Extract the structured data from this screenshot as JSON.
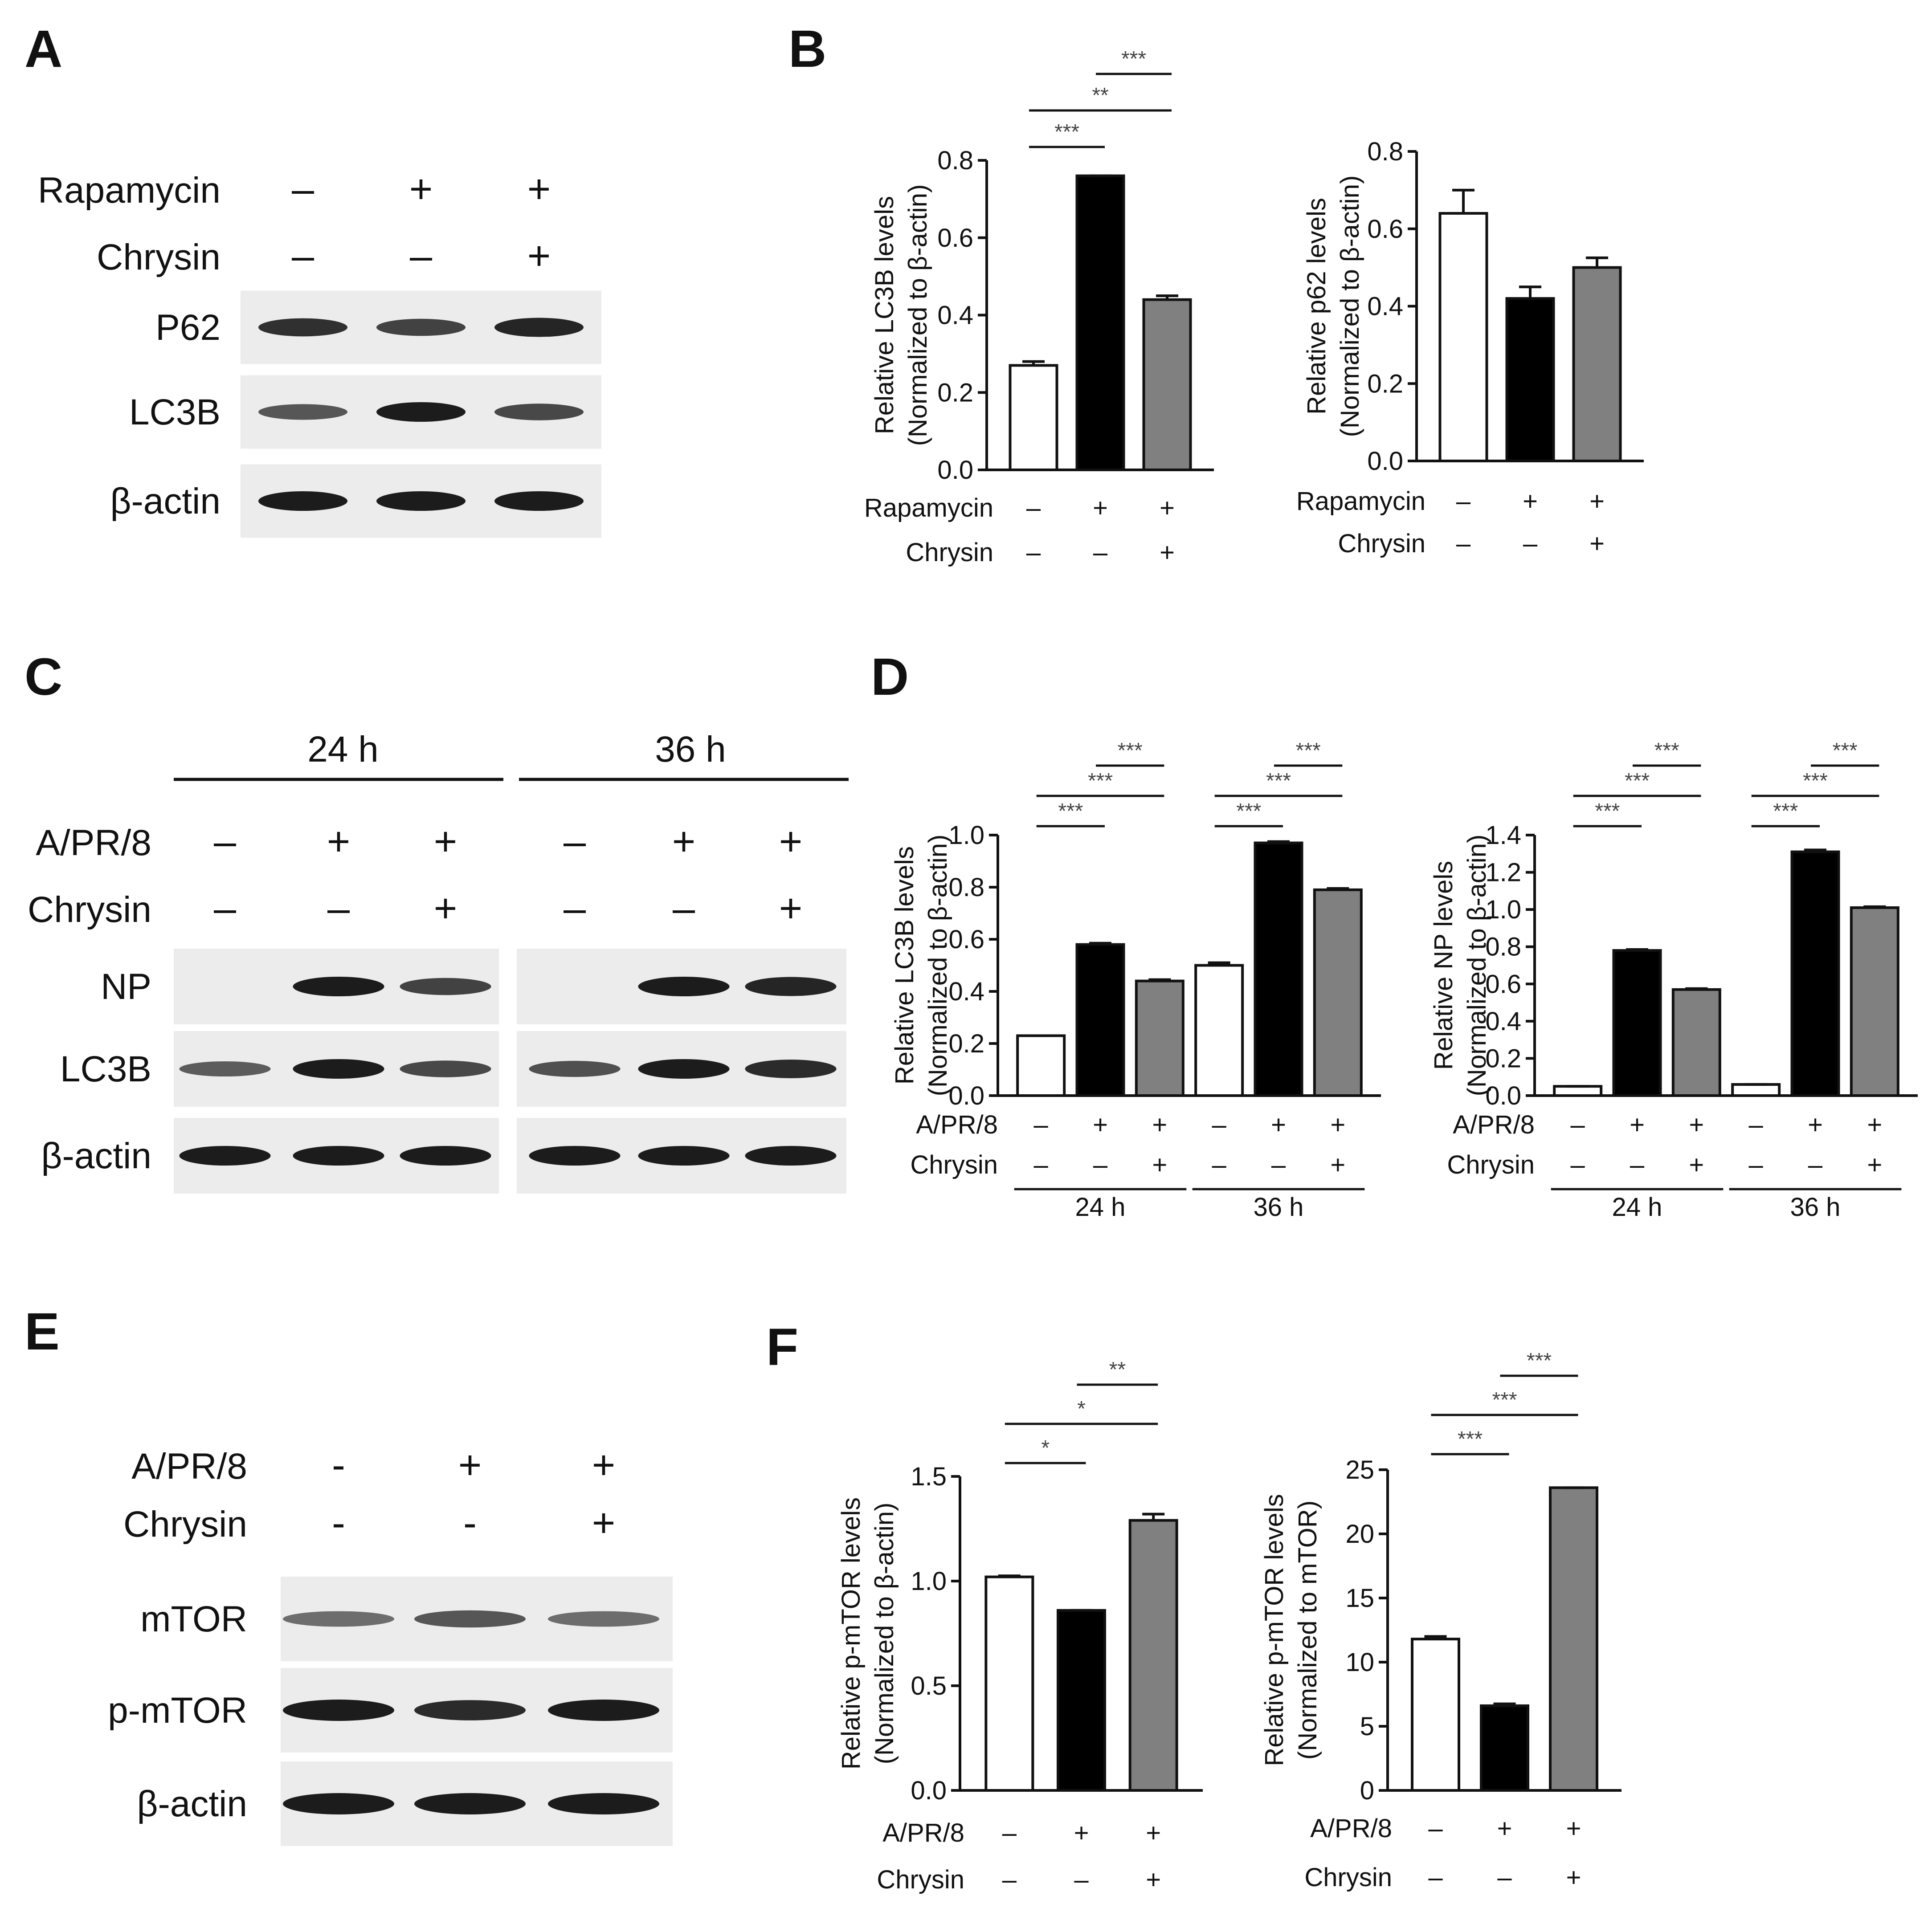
{
  "panels": {
    "A": "A",
    "B": "B",
    "C": "C",
    "D": "D",
    "E": "E",
    "F": "F"
  },
  "colors": {
    "control": "#ffffff",
    "treated": "#000000",
    "combo": "#808080",
    "band": "#1c1c1c",
    "blot_bg": "#ececec"
  },
  "blot_A": {
    "conditions": [
      {
        "label": "Rapamycin",
        "signs": [
          "–",
          "+",
          "+"
        ]
      },
      {
        "label": "Chrysin",
        "signs": [
          "–",
          "–",
          "+"
        ]
      }
    ],
    "rows": [
      {
        "label": "P62",
        "band_intensity": [
          0.85,
          0.75,
          0.95
        ]
      },
      {
        "label": "LC3B",
        "band_intensity": [
          0.6,
          1.0,
          0.7
        ]
      },
      {
        "label": "β-actin",
        "band_intensity": [
          1.0,
          1.0,
          1.0
        ]
      }
    ]
  },
  "blot_C": {
    "groups": [
      "24 h",
      "36 h"
    ],
    "conditions": [
      {
        "label": "A/PR/8",
        "signs": [
          "–",
          "+",
          "+",
          "–",
          "+",
          "+"
        ]
      },
      {
        "label": "Chrysin",
        "signs": [
          "–",
          "–",
          "+",
          "–",
          "–",
          "+"
        ]
      }
    ],
    "rows": [
      {
        "label": "NP",
        "band_intensity": [
          0,
          1.0,
          0.75,
          0,
          1.0,
          0.95
        ]
      },
      {
        "label": "LC3B",
        "band_intensity": [
          0.55,
          1.0,
          0.7,
          0.65,
          1.0,
          0.9
        ]
      },
      {
        "label": "β-actin",
        "band_intensity": [
          1.0,
          1.0,
          1.0,
          1.0,
          1.0,
          1.0
        ]
      }
    ]
  },
  "blot_E": {
    "conditions": [
      {
        "label": "A/PR/8",
        "signs": [
          "-",
          "+",
          "+"
        ]
      },
      {
        "label": "Chrysin",
        "signs": [
          "-",
          "-",
          "+"
        ]
      }
    ],
    "rows": [
      {
        "label": "mTOR",
        "band_intensity": [
          0.45,
          0.6,
          0.45
        ]
      },
      {
        "label": "p-mTOR",
        "band_intensity": [
          1.0,
          0.9,
          1.0
        ]
      },
      {
        "label": "β-actin",
        "band_intensity": [
          1.0,
          1.0,
          1.0
        ]
      }
    ]
  },
  "chart_data": [
    {
      "panel": "B",
      "type": "bar",
      "ylabel": [
        "Relative LC3B levels",
        "(Normalized to β-actin)"
      ],
      "ylim": [
        0,
        0.8
      ],
      "yticks": [
        "0.0",
        "0.2",
        "0.4",
        "0.6",
        "0.8"
      ],
      "values": [
        0.27,
        0.76,
        0.44
      ],
      "errors": [
        0.01,
        0.0,
        0.01
      ],
      "conditions": [
        {
          "label": "Rapamycin",
          "signs": [
            "–",
            "+",
            "+"
          ]
        },
        {
          "label": "Chrysin",
          "signs": [
            "–",
            "–",
            "+"
          ]
        }
      ],
      "significance": [
        {
          "from": 0,
          "to": 1,
          "label": "***"
        },
        {
          "from": 0,
          "to": 2,
          "label": "**"
        },
        {
          "from": 1,
          "to": 2,
          "label": "***"
        }
      ]
    },
    {
      "panel": "B",
      "type": "bar",
      "ylabel": [
        "Relative p62 levels",
        "(Normalized to β-actin)"
      ],
      "ylim": [
        0,
        0.8
      ],
      "yticks": [
        "0.0",
        "0.2",
        "0.4",
        "0.6",
        "0.8"
      ],
      "values": [
        0.64,
        0.42,
        0.5
      ],
      "errors": [
        0.06,
        0.03,
        0.025
      ],
      "conditions": [
        {
          "label": "Rapamycin",
          "signs": [
            "–",
            "+",
            "+"
          ]
        },
        {
          "label": "Chrysin",
          "signs": [
            "–",
            "–",
            "+"
          ]
        }
      ],
      "significance": []
    },
    {
      "panel": "D",
      "type": "bar",
      "ylabel": [
        "Relative LC3B levels",
        "(Normalized to β-actin)"
      ],
      "ylim": [
        0,
        1.0
      ],
      "yticks": [
        "0.0",
        "0.2",
        "0.4",
        "0.6",
        "0.8",
        "1.0"
      ],
      "groups": [
        "24 h",
        "36 h"
      ],
      "values": [
        0.23,
        0.58,
        0.44,
        0.5,
        0.97,
        0.79
      ],
      "errors": [
        0.0,
        0.005,
        0.005,
        0.01,
        0.005,
        0.005
      ],
      "conditions": [
        {
          "label": "A/PR/8",
          "signs": [
            "–",
            "+",
            "+",
            "–",
            "+",
            "+"
          ]
        },
        {
          "label": "Chrysin",
          "signs": [
            "–",
            "–",
            "+",
            "–",
            "–",
            "+"
          ]
        }
      ],
      "significance": [
        {
          "from": 0,
          "to": 1,
          "label": "***"
        },
        {
          "from": 0,
          "to": 2,
          "label": "***"
        },
        {
          "from": 1,
          "to": 2,
          "label": "***"
        },
        {
          "from": 3,
          "to": 4,
          "label": "***"
        },
        {
          "from": 3,
          "to": 5,
          "label": "***"
        },
        {
          "from": 4,
          "to": 5,
          "label": "***"
        }
      ]
    },
    {
      "panel": "D",
      "type": "bar",
      "ylabel": [
        "Relative NP levels",
        "(Normalized to β-actin)"
      ],
      "ylim": [
        0,
        1.4
      ],
      "yticks": [
        "0.0",
        "0.2",
        "0.4",
        "0.6",
        "0.8",
        "1.0",
        "1.2",
        "1.4"
      ],
      "groups": [
        "24 h",
        "36 h"
      ],
      "values": [
        0.05,
        0.78,
        0.57,
        0.06,
        1.31,
        1.01
      ],
      "errors": [
        0.0,
        0.005,
        0.005,
        0.0,
        0.01,
        0.005
      ],
      "conditions": [
        {
          "label": "A/PR/8",
          "signs": [
            "–",
            "+",
            "+",
            "–",
            "+",
            "+"
          ]
        },
        {
          "label": "Chrysin",
          "signs": [
            "–",
            "–",
            "+",
            "–",
            "–",
            "+"
          ]
        }
      ],
      "significance": [
        {
          "from": 0,
          "to": 1,
          "label": "***"
        },
        {
          "from": 0,
          "to": 2,
          "label": "***"
        },
        {
          "from": 1,
          "to": 2,
          "label": "***"
        },
        {
          "from": 3,
          "to": 4,
          "label": "***"
        },
        {
          "from": 3,
          "to": 5,
          "label": "***"
        },
        {
          "from": 4,
          "to": 5,
          "label": "***"
        }
      ]
    },
    {
      "panel": "F",
      "type": "bar",
      "ylabel": [
        "Relative p-mTOR levels",
        "(Normalized to β-actin)"
      ],
      "ylim": [
        0,
        1.5
      ],
      "yticks": [
        "0.0",
        "0.5",
        "1.0",
        "1.5"
      ],
      "values": [
        1.02,
        0.86,
        1.29
      ],
      "errors": [
        0.005,
        0.0,
        0.03
      ],
      "conditions": [
        {
          "label": "A/PR/8",
          "signs": [
            "–",
            "+",
            "+"
          ]
        },
        {
          "label": "Chrysin",
          "signs": [
            "–",
            "–",
            "+"
          ]
        }
      ],
      "significance": [
        {
          "from": 0,
          "to": 1,
          "label": "*"
        },
        {
          "from": 0,
          "to": 2,
          "label": "*"
        },
        {
          "from": 1,
          "to": 2,
          "label": "**"
        }
      ]
    },
    {
      "panel": "F",
      "type": "bar",
      "ylabel": [
        "Relative p-mTOR levels",
        "(Normalized to mTOR)"
      ],
      "ylim": [
        0,
        25
      ],
      "yticks": [
        "0",
        "5",
        "10",
        "15",
        "20",
        "25"
      ],
      "values": [
        11.8,
        6.6,
        23.6
      ],
      "errors": [
        0.2,
        0.15,
        0.0
      ],
      "conditions": [
        {
          "label": "A/PR/8",
          "signs": [
            "–",
            "+",
            "+"
          ]
        },
        {
          "label": "Chrysin",
          "signs": [
            "–",
            "–",
            "+"
          ]
        }
      ],
      "significance": [
        {
          "from": 0,
          "to": 1,
          "label": "***"
        },
        {
          "from": 0,
          "to": 2,
          "label": "***"
        },
        {
          "from": 1,
          "to": 2,
          "label": "***"
        }
      ]
    }
  ]
}
